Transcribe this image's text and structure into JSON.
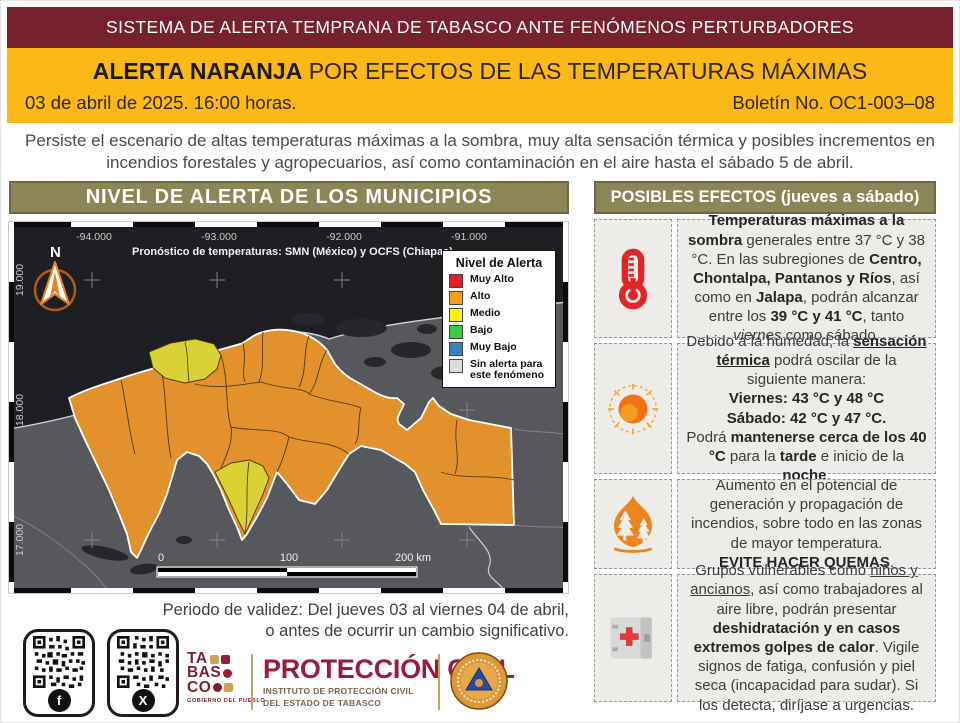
{
  "colors": {
    "maroon": "#76212E",
    "banner_yellow": "#FBB817",
    "olive": "#8C8557",
    "municipality_orange": "#E2912D",
    "municipality_yellow": "#DAD235",
    "sea": "#1E1F23",
    "land_gray": "#57585C",
    "crimson_logo": "#9B1C3E"
  },
  "header": {
    "system_title": "SISTEMA DE ALERTA TEMPRANA DE TABASCO ANTE FENÓMENOS PERTURBADORES",
    "alert_title_segments": [
      {
        "t": "ALERTA NARANJA",
        "b": true
      },
      {
        "t": " POR EFECTOS DE LAS TEMPERATURAS MÁXIMAS"
      }
    ],
    "date": "03 de abril de 2025. 16:00 horas.",
    "bulletin": "Boletín No. OC1-003–08",
    "summary": "Persiste el escenario de altas temperaturas máximas a la sombra, muy alta sensación térmica y posibles incrementos en incendios forestales y agropecuarios, así como contaminación en el aire hasta el sábado 5 de abril."
  },
  "map": {
    "title": "NIVEL DE ALERTA DE LOS MUNICIPIOS",
    "annotation": "Pronóstico de temperaturas: SMN (México) y OCFS (Chiapas).",
    "north_label": "N",
    "x_ticks": [
      "-94.000",
      "-93.000",
      "-92.000",
      "-91.000"
    ],
    "y_ticks": [
      "19.000",
      "18.000",
      "17.000"
    ],
    "scale_labels": [
      "0",
      "100",
      "200 km"
    ],
    "legend": {
      "title": "Nivel de Alerta",
      "items": [
        {
          "label": "Muy Alto",
          "color": "#E31E24"
        },
        {
          "label": "Alto",
          "color": "#F59E19"
        },
        {
          "label": "Medio",
          "color": "#FFF200"
        },
        {
          "label": "Bajo",
          "color": "#3BCB40"
        },
        {
          "label": "Muy Bajo",
          "color": "#3A7DBF"
        },
        {
          "label": "Sin alerta para este fenómeno",
          "color": "#DCDCDC"
        }
      ]
    }
  },
  "effects": {
    "title": "POSIBLES EFECTOS (jueves a sábado)",
    "items": [
      {
        "icon": "thermometer-icon",
        "segments": [
          {
            "t": "Temperaturas máximas a la sombra",
            "b": true
          },
          {
            "t": " generales entre 37 °C y 38 °C. En las subregiones de "
          },
          {
            "t": "Centro, Chontalpa, Pantanos y Ríos",
            "b": true
          },
          {
            "t": ", así como en "
          },
          {
            "t": "Jalapa",
            "b": true
          },
          {
            "t": ", podrán alcanzar entre los "
          },
          {
            "t": "39 °C y 41 °C",
            "b": true
          },
          {
            "t": ", tanto "
          },
          {
            "t": "viernes",
            "i": true
          },
          {
            "t": " como sábado."
          }
        ]
      },
      {
        "icon": "sun-icon",
        "segments": [
          {
            "t": "Debido a la humedad, la "
          },
          {
            "t": "sensación térmica",
            "b": true,
            "u": true
          },
          {
            "t": " podrá oscilar de la siguiente manera:"
          },
          {
            "br": true
          },
          {
            "t": "Viernes: 43 °C y 48 °C",
            "b": true
          },
          {
            "br": true
          },
          {
            "t": "Sábado: 42 °C y 47 °C.",
            "b": true
          },
          {
            "br": true
          },
          {
            "t": "Podrá "
          },
          {
            "t": "mantenerse cerca de los 40 °C",
            "b": true
          },
          {
            "t": " para la "
          },
          {
            "t": "tarde",
            "b": true
          },
          {
            "t": " e inicio de la "
          },
          {
            "t": "noche",
            "b": true
          },
          {
            "t": "."
          }
        ]
      },
      {
        "icon": "wildfire-icon",
        "segments": [
          {
            "t": "Aumento en el potencial de generación y propagación de incendios, sobre todo en las zonas de mayor temperatura."
          },
          {
            "br": true
          },
          {
            "t": "EVITE HACER QUEMAS",
            "b": true
          },
          {
            "t": "."
          }
        ]
      },
      {
        "icon": "first-aid-icon",
        "segments": [
          {
            "t": "Grupos vulnerables como "
          },
          {
            "t": "niños y ancianos",
            "u": true
          },
          {
            "t": ", así como trabajadores al aire libre, podrán presentar "
          },
          {
            "t": "deshidratación y en casos extremos golpes de calor",
            "b": true
          },
          {
            "t": ". Vigile signos de fatiga, confusión y piel seca (incapacidad para sudar). Si los detecta, diríjase a urgencias."
          }
        ]
      }
    ]
  },
  "footer": {
    "validity_line1": "Periodo de validez: Del jueves 03 al viernes 04 de abril,",
    "validity_line2": "o antes de ocurrir un cambio significativo.",
    "qr_badges": [
      {
        "name": "facebook",
        "glyph": "f"
      },
      {
        "name": "x",
        "glyph": "X"
      }
    ],
    "tabasco_logo": {
      "line1": "TA",
      "line2": "BAS",
      "line3": "CO",
      "subtitle": "GOBIERNO DEL PUEBLO"
    },
    "civil_protection": {
      "title": "PROTECCIÓN CIVIL",
      "line1": "INSTITUTO DE PROTECCIÓN CIVIL",
      "line2": "DEL ESTADO DE TABASCO"
    }
  }
}
